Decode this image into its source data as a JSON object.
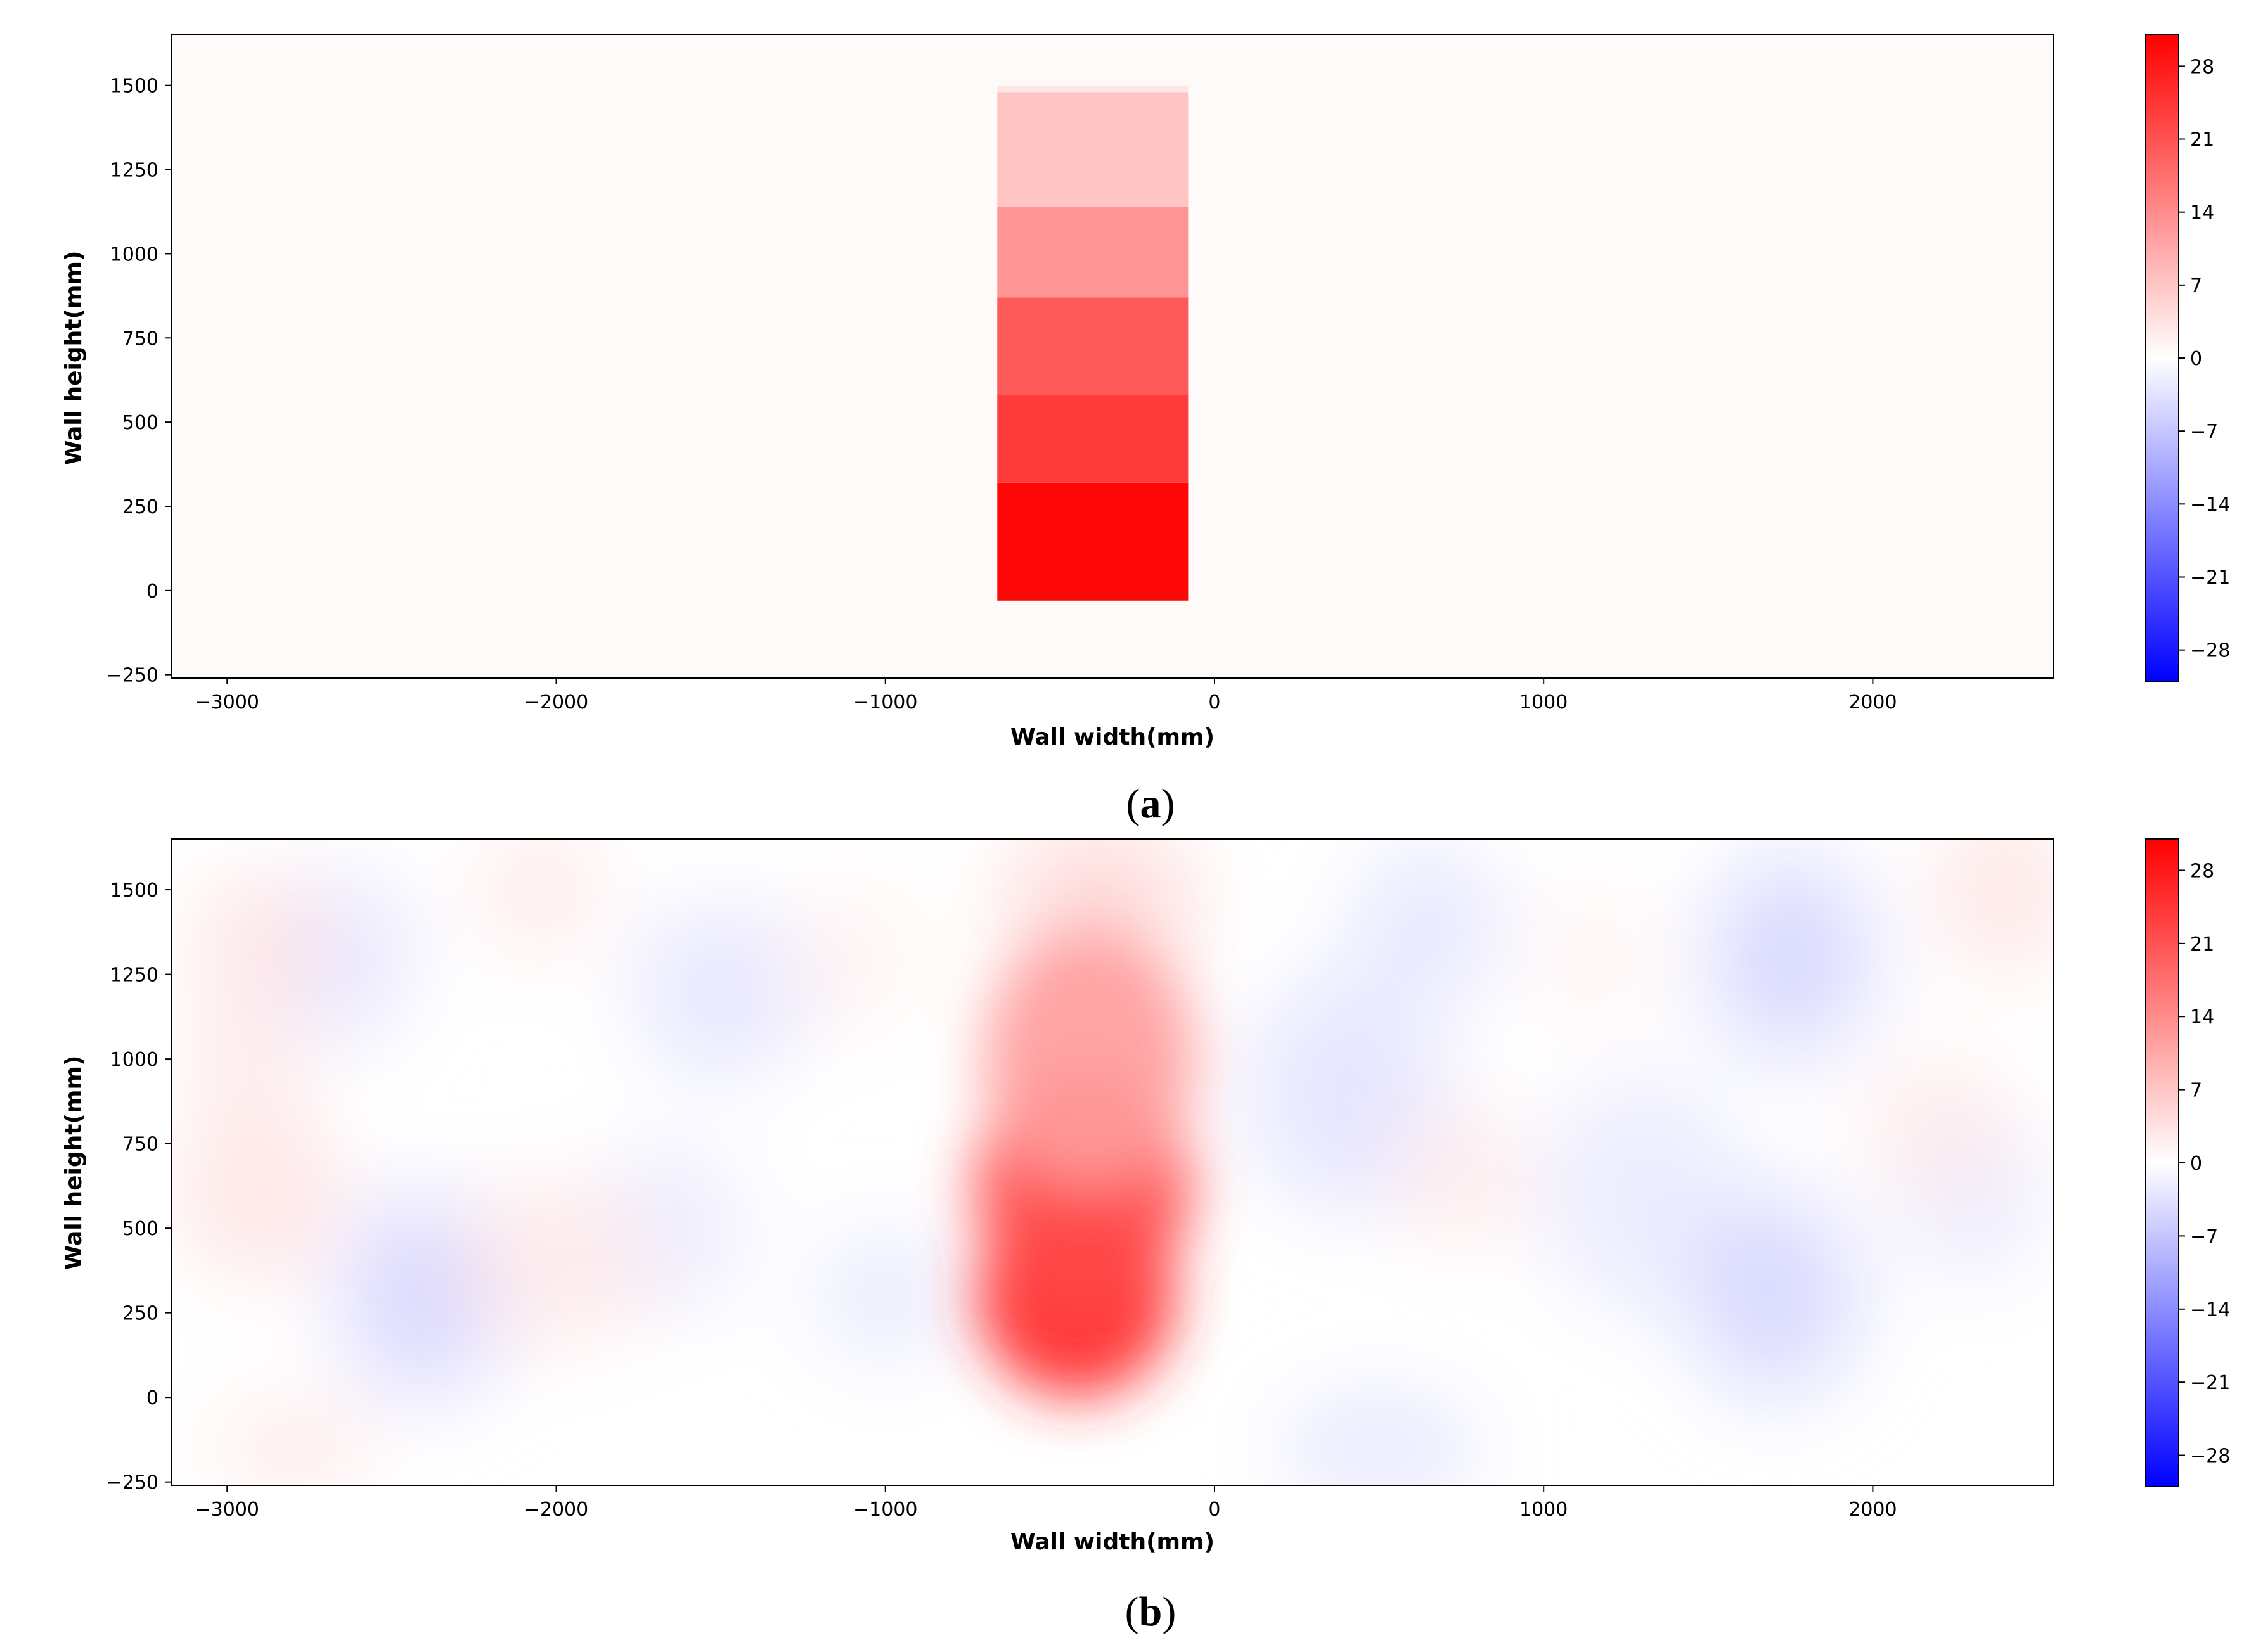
{
  "chart_data": [
    {
      "type": "heatmap",
      "panel_label": "a",
      "xlabel": "Wall width(mm)",
      "ylabel": "Wall height(mm)",
      "xlim": [
        -3170,
        2550
      ],
      "ylim": [
        -260,
        1650
      ],
      "xticks": [
        -3000,
        -2000,
        -1000,
        0,
        1000,
        2000
      ],
      "xtick_labels": [
        "−3000",
        "−2000",
        "−1000",
        "0",
        "1000",
        "2000"
      ],
      "yticks": [
        -250,
        0,
        250,
        500,
        750,
        1000,
        1250,
        1500
      ],
      "ytick_labels": [
        "−250",
        "0",
        "250",
        "500",
        "750",
        "1000",
        "1250",
        "1500"
      ],
      "colorbar": {
        "vmin": -31,
        "vmax": 31,
        "ticks": [
          28,
          21,
          14,
          7,
          0,
          -7,
          -14,
          -21,
          -28
        ],
        "tick_labels": [
          "28",
          "21",
          "14",
          "7",
          "0",
          "−7",
          "−14",
          "−21",
          "−28"
        ],
        "colormap": "bwr",
        "low_color": "#0000ff",
        "mid_color": "#ffffff",
        "high_color": "#ff0000"
      },
      "background_value": 0,
      "regions": [
        {
          "x": [
            -660,
            -80
          ],
          "y": [
            -30,
            320
          ],
          "value": 30
        },
        {
          "x": [
            -660,
            -80
          ],
          "y": [
            320,
            580
          ],
          "value": 24
        },
        {
          "x": [
            -660,
            -80
          ],
          "y": [
            580,
            870
          ],
          "value": 20
        },
        {
          "x": [
            -660,
            -80
          ],
          "y": [
            870,
            1140
          ],
          "value": 13
        },
        {
          "x": [
            -660,
            -80
          ],
          "y": [
            1140,
            1480
          ],
          "value": 7
        },
        {
          "x": [
            -660,
            -80
          ],
          "y": [
            1480,
            1500
          ],
          "value": 3
        }
      ]
    },
    {
      "type": "heatmap",
      "panel_label": "b",
      "xlabel": "Wall width(mm)",
      "ylabel": "Wall height(mm)",
      "xlim": [
        -3170,
        2550
      ],
      "ylim": [
        -260,
        1650
      ],
      "xticks": [
        -3000,
        -2000,
        -1000,
        0,
        1000,
        2000
      ],
      "xtick_labels": [
        "−3000",
        "−2000",
        "−1000",
        "0",
        "1000",
        "2000"
      ],
      "yticks": [
        -250,
        0,
        250,
        500,
        750,
        1000,
        1250,
        1500
      ],
      "ytick_labels": [
        "−250",
        "0",
        "250",
        "500",
        "750",
        "1000",
        "1250",
        "1500"
      ],
      "colorbar": {
        "vmin": -31,
        "vmax": 31,
        "ticks": [
          28,
          21,
          14,
          7,
          0,
          -7,
          -14,
          -21,
          -28
        ],
        "tick_labels": [
          "28",
          "21",
          "14",
          "7",
          "0",
          "−7",
          "−14",
          "−21",
          "−28"
        ],
        "colormap": "bwr",
        "low_color": "#0000ff",
        "mid_color": "#ffffff",
        "high_color": "#ff0000"
      },
      "background_value": 0,
      "blobs": [
        {
          "x": -420,
          "y": 300,
          "rx": 300,
          "ry": 300,
          "value": 26
        },
        {
          "x": -400,
          "y": 620,
          "rx": 330,
          "ry": 340,
          "value": 22
        },
        {
          "x": -380,
          "y": 1000,
          "rx": 320,
          "ry": 380,
          "value": 12
        },
        {
          "x": -350,
          "y": 1450,
          "rx": 280,
          "ry": 250,
          "value": 6
        },
        {
          "x": -2400,
          "y": 300,
          "rx": 250,
          "ry": 300,
          "value": -6
        },
        {
          "x": -2650,
          "y": 1300,
          "rx": 200,
          "ry": 250,
          "value": -4
        },
        {
          "x": -1500,
          "y": 1200,
          "rx": 250,
          "ry": 250,
          "value": -4
        },
        {
          "x": -1650,
          "y": 500,
          "rx": 220,
          "ry": 250,
          "value": -3
        },
        {
          "x": -1000,
          "y": 300,
          "rx": 220,
          "ry": 200,
          "value": -3
        },
        {
          "x": 400,
          "y": 900,
          "rx": 300,
          "ry": 350,
          "value": -4
        },
        {
          "x": 500,
          "y": -150,
          "rx": 300,
          "ry": 150,
          "value": -4
        },
        {
          "x": 1300,
          "y": 600,
          "rx": 300,
          "ry": 350,
          "value": -3
        },
        {
          "x": 1700,
          "y": 300,
          "rx": 250,
          "ry": 300,
          "value": -6
        },
        {
          "x": 1750,
          "y": 1300,
          "rx": 250,
          "ry": 300,
          "value": -6
        },
        {
          "x": 2300,
          "y": 600,
          "rx": 220,
          "ry": 250,
          "value": -3
        },
        {
          "x": 650,
          "y": 1400,
          "rx": 220,
          "ry": 220,
          "value": -4
        },
        {
          "x": -2900,
          "y": 1350,
          "rx": 200,
          "ry": 200,
          "value": 4
        },
        {
          "x": -2950,
          "y": 1000,
          "rx": 180,
          "ry": 200,
          "value": 3
        },
        {
          "x": -2900,
          "y": 600,
          "rx": 250,
          "ry": 250,
          "value": 4
        },
        {
          "x": -2050,
          "y": 1500,
          "rx": 200,
          "ry": 200,
          "value": 3
        },
        {
          "x": -2000,
          "y": 400,
          "rx": 300,
          "ry": 250,
          "value": 3
        },
        {
          "x": -1100,
          "y": 1300,
          "rx": 200,
          "ry": 220,
          "value": 2
        },
        {
          "x": 750,
          "y": 650,
          "rx": 200,
          "ry": 200,
          "value": 3
        },
        {
          "x": 1150,
          "y": 1300,
          "rx": 180,
          "ry": 200,
          "value": 2
        },
        {
          "x": 2400,
          "y": 1500,
          "rx": 200,
          "ry": 250,
          "value": 4
        },
        {
          "x": 2200,
          "y": 800,
          "rx": 220,
          "ry": 200,
          "value": 3
        },
        {
          "x": -2800,
          "y": -150,
          "rx": 250,
          "ry": 150,
          "value": 3
        }
      ]
    }
  ]
}
